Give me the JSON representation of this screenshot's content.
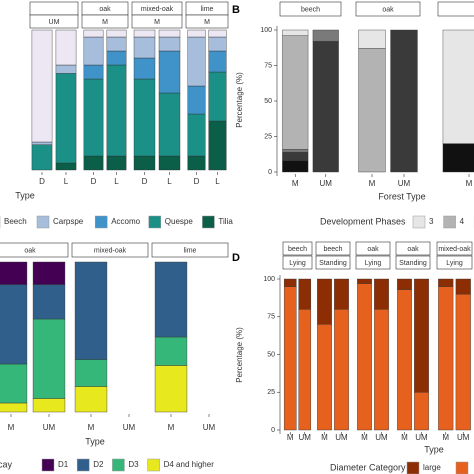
{
  "chart_data": [
    {
      "type": "stacked_bar",
      "xlabel": "Type",
      "ylim": [
        0,
        100
      ],
      "facets": [
        {
          "label": null,
          "sublabel": "UM",
          "categories": [
            "D",
            "L"
          ]
        },
        {
          "label": "oak",
          "sublabel": "M",
          "categories": [
            "D",
            "L"
          ]
        },
        {
          "label": "mixed-oak",
          "sublabel": "M",
          "categories": [
            "D",
            "L"
          ]
        },
        {
          "label": "lime",
          "sublabel": "M",
          "categories": [
            "D",
            "L"
          ]
        }
      ],
      "series": [
        {
          "name": "Beech",
          "color": "#ece7f2",
          "values": [
            80,
            25,
            5,
            5,
            5,
            5,
            5,
            5
          ]
        },
        {
          "name": "Carpspe",
          "color": "#a6bddb",
          "values": [
            2,
            6,
            20,
            10,
            15,
            10,
            35,
            10
          ]
        },
        {
          "name": "Accomo",
          "color": "#3f93c9",
          "values": [
            0,
            0,
            10,
            10,
            15,
            30,
            20,
            15
          ]
        },
        {
          "name": "Quespe",
          "color": "#1a9087",
          "values": [
            18,
            64,
            55,
            65,
            55,
            45,
            30,
            35
          ]
        },
        {
          "name": "Tilia",
          "color": "#0b5e48",
          "values": [
            0,
            5,
            10,
            10,
            10,
            10,
            10,
            35
          ]
        }
      ]
    },
    {
      "type": "stacked_bar",
      "panel_label": "B",
      "ylabel": "Percentage (%)",
      "xlabel": "Forest Type",
      "legend_title": "Development Phases",
      "ylim": [
        0,
        100
      ],
      "yticks": [
        0,
        25,
        50,
        75,
        100
      ],
      "facets": [
        {
          "label": "beech",
          "categories": [
            "M",
            "UM"
          ]
        },
        {
          "label": "oak",
          "categories": [
            "M",
            "UM"
          ]
        },
        {
          "label": null,
          "categories": [
            "M"
          ]
        }
      ],
      "series": [
        {
          "name": "3",
          "color": "#e6e6e6",
          "values": [
            4,
            0,
            13,
            0,
            80
          ]
        },
        {
          "name": "4",
          "color": "#b3b3b3",
          "values": [
            80,
            0,
            87,
            0,
            0
          ]
        },
        {
          "color": "#7a7a7a",
          "values": [
            2,
            8,
            0,
            0,
            0
          ]
        },
        {
          "color": "#3a3a3a",
          "values": [
            6,
            92,
            0,
            100,
            0
          ]
        },
        {
          "color": "#111111",
          "values": [
            8,
            0,
            0,
            0,
            20
          ]
        }
      ]
    },
    {
      "type": "stacked_bar",
      "xlabel": "Type",
      "legend_title": "cay",
      "ylim": [
        0,
        100
      ],
      "facets": [
        {
          "label": "oak",
          "categories": [
            "M",
            "UM"
          ]
        },
        {
          "label": "mixed-oak",
          "categories": [
            "M",
            "UM"
          ]
        },
        {
          "label": "lime",
          "categories": [
            "M",
            "UM"
          ]
        }
      ],
      "series": [
        {
          "name": "D1",
          "color": "#440154",
          "values": [
            15,
            15,
            0,
            null,
            0,
            null
          ]
        },
        {
          "name": "D2",
          "color": "#2f5f8a",
          "values": [
            53,
            23,
            65,
            null,
            50,
            null
          ]
        },
        {
          "name": "D3",
          "color": "#35b779",
          "values": [
            26,
            53,
            18,
            null,
            19,
            null
          ]
        },
        {
          "name": "D4 and higher",
          "color": "#e8e81f",
          "values": [
            6,
            9,
            17,
            null,
            31,
            null
          ]
        }
      ]
    },
    {
      "type": "stacked_bar",
      "panel_label": "D",
      "ylabel": "Percentage (%)",
      "xlabel": "Type",
      "legend_title": "Diameter Category",
      "ylim": [
        0,
        100
      ],
      "yticks": [
        0,
        25,
        50,
        75,
        100
      ],
      "facets": [
        {
          "label": "beech",
          "sublabel": "Lying",
          "categories": [
            "M",
            "UM"
          ]
        },
        {
          "label": "beech",
          "sublabel": "Standing",
          "categories": [
            "M",
            "UM"
          ]
        },
        {
          "label": "oak",
          "sublabel": "Lying",
          "categories": [
            "M",
            "UM"
          ]
        },
        {
          "label": "oak",
          "sublabel": "Standing",
          "categories": [
            "M",
            "UM"
          ]
        },
        {
          "label": "mixed-oak",
          "sublabel": "Lying",
          "categories": [
            "M",
            "UM"
          ]
        }
      ],
      "series": [
        {
          "name": "large",
          "color": "#8c2d04",
          "values": [
            5,
            20,
            30,
            20,
            3,
            20,
            7,
            75,
            5,
            10
          ]
        },
        {
          "color": "#e6601e",
          "values": [
            95,
            80,
            70,
            80,
            97,
            80,
            93,
            25,
            95,
            90
          ]
        }
      ]
    }
  ]
}
